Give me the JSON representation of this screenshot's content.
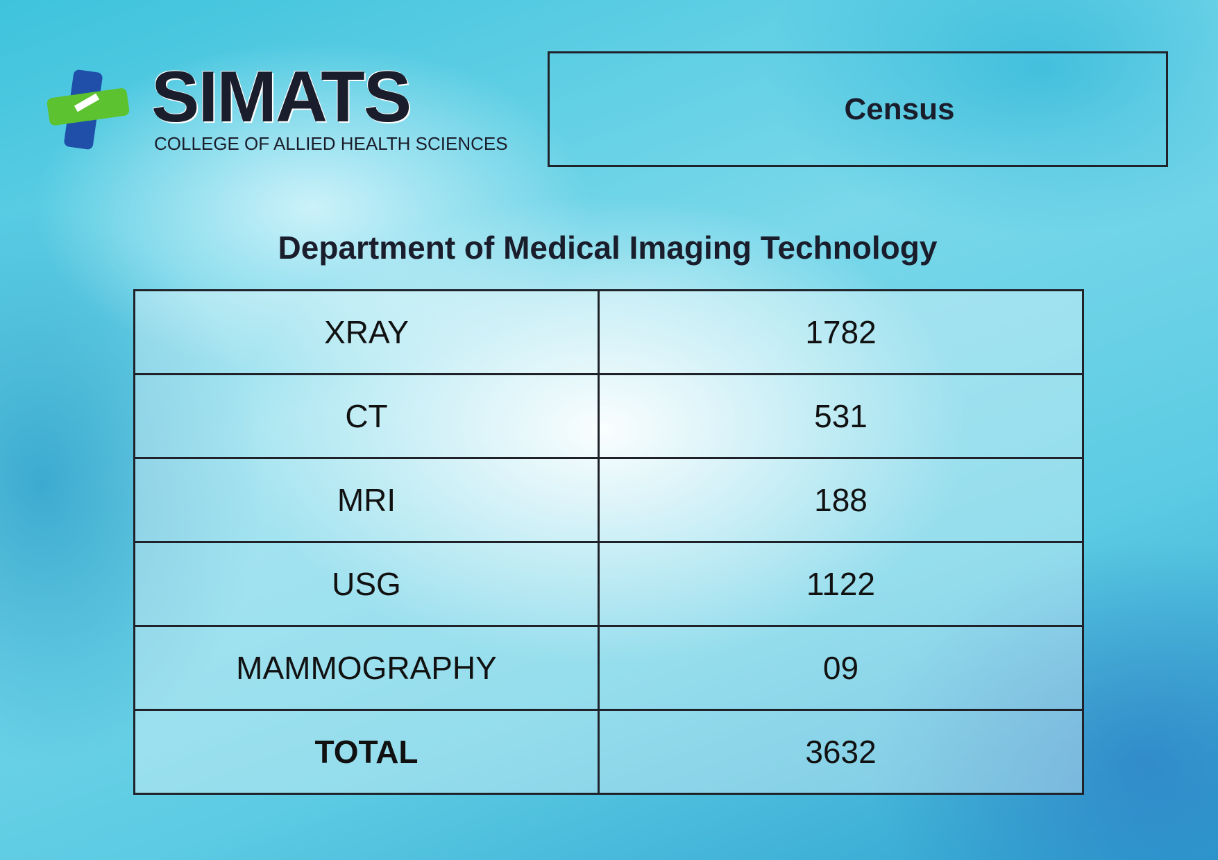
{
  "header": {
    "logo_text": "SIMATS",
    "logo_subtitle": "COLLEGE OF ALLIED HEALTH SCIENCES",
    "box_title": "Census"
  },
  "title": "Department of Medical Imaging Technology",
  "table": {
    "rows": [
      [
        "XRAY",
        "1782"
      ],
      [
        "CT",
        "531"
      ],
      [
        "MRI",
        "188"
      ],
      [
        "USG",
        "1122"
      ],
      [
        "MAMMOGRAPHY",
        "09"
      ],
      [
        "TOTAL",
        "3632"
      ]
    ]
  }
}
